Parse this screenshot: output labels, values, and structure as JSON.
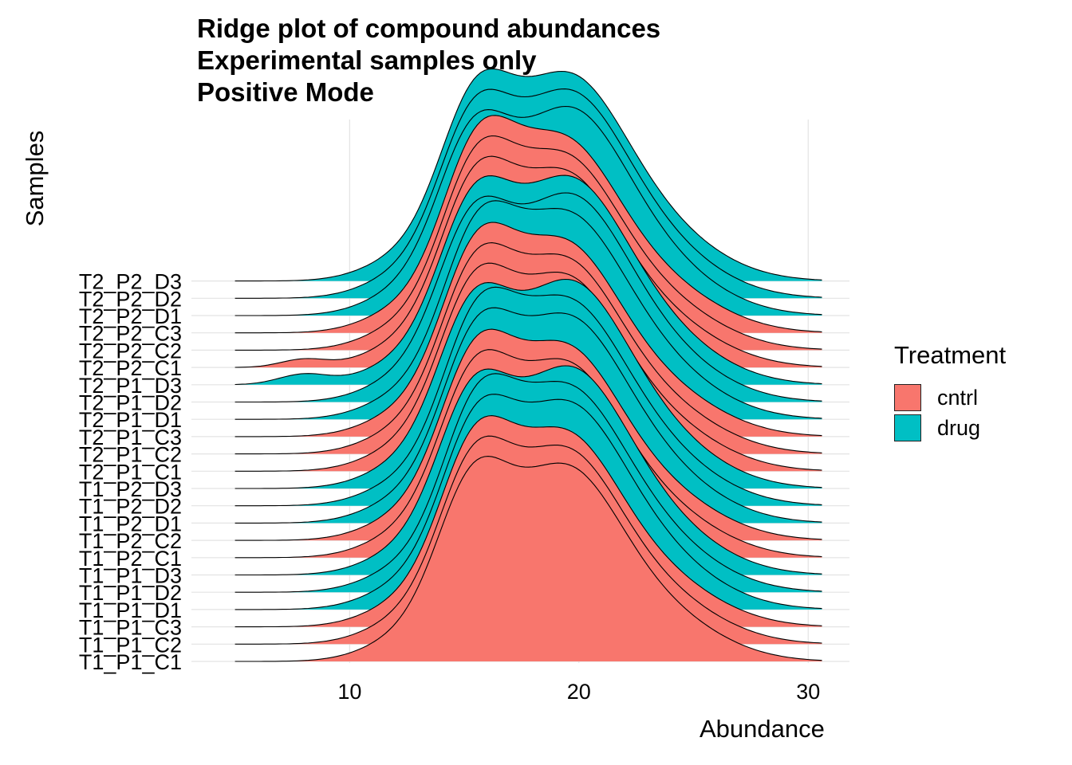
{
  "chart_data": {
    "type": "ridgeline",
    "title_lines": [
      "Ridge plot of compound abundances",
      "Experimental samples only",
      "Positive Mode"
    ],
    "xlabel": "Abundance",
    "ylabel": "Samples",
    "x_ticks": [
      10,
      20,
      30
    ],
    "xlim": [
      3.1,
      31.8
    ],
    "samples": [
      "T1_P1_C1",
      "T1_P1_C2",
      "T1_P1_C3",
      "T1_P1_D1",
      "T1_P1_D2",
      "T1_P1_D3",
      "T1_P2_C1",
      "T1_P2_C2",
      "T1_P2_D1",
      "T1_P2_D2",
      "T1_P2_D3",
      "T2_P1_C1",
      "T2_P1_C2",
      "T2_P1_C3",
      "T2_P1_D1",
      "T2_P1_D2",
      "T2_P1_D3",
      "T2_P2_C1",
      "T2_P2_C2",
      "T2_P2_C3",
      "T2_P2_D1",
      "T2_P2_D2",
      "T2_P2_D3"
    ],
    "treatment": [
      "cntrl",
      "cntrl",
      "cntrl",
      "drug",
      "drug",
      "drug",
      "cntrl",
      "cntrl",
      "drug",
      "drug",
      "drug",
      "cntrl",
      "cntrl",
      "cntrl",
      "drug",
      "drug",
      "drug",
      "cntrl",
      "cntrl",
      "cntrl",
      "drug",
      "drug",
      "drug"
    ],
    "legend": {
      "title": "Treatment",
      "entries": [
        {
          "label": "cntrl",
          "color": "#F8766D"
        },
        {
          "label": "drug",
          "color": "#00BFC4"
        }
      ],
      "position": "right"
    },
    "grid": true,
    "density_x_range": [
      5,
      30.6
    ]
  }
}
